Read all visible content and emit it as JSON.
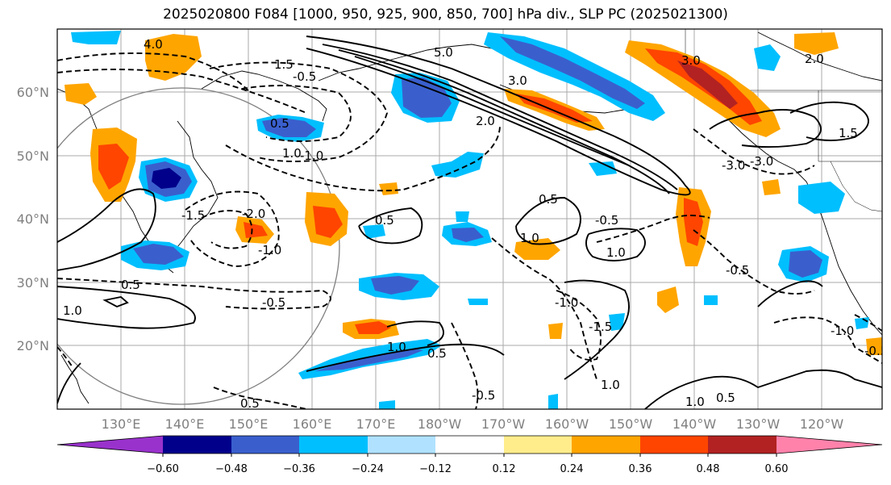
{
  "title": "2025020800 F084 [1000, 950, 925, 900, 850, 700] hPa div., SLP PC (2025021300)",
  "lat_labels": [
    "60°N",
    "50°N",
    "40°N",
    "30°N",
    "20°N"
  ],
  "lon_labels": [
    "130°E",
    "140°E",
    "150°E",
    "160°E",
    "170°E",
    "180°W",
    "170°W",
    "160°W",
    "150°W",
    "140°W",
    "130°W",
    "120°W"
  ],
  "colorbar": {
    "ticks": [
      "−0.60",
      "−0.48",
      "−0.36",
      "−0.24",
      "−0.12",
      "0.12",
      "0.24",
      "0.36",
      "0.48",
      "0.60"
    ],
    "colors": [
      "#9932cc",
      "#00008b",
      "#3a5fcd",
      "#00bfff",
      "#b0e2ff",
      "#ffffff",
      "#ffec8b",
      "#ffa500",
      "#ff4500",
      "#b22222",
      "#ff82ab"
    ]
  },
  "fill_colors": {
    "neg_light": "#b0e2ff",
    "neg_mid": "#00bfff",
    "neg_strong": "#3a5fcd",
    "neg_max": "#00008b",
    "pos_light": "#ffec8b",
    "pos_mid": "#ffa500",
    "pos_strong": "#ff4500",
    "pos_max": "#b22222"
  },
  "contour_labels": [
    "4.0",
    "5.0",
    "3.0",
    "2.0",
    "1.5",
    "1.0",
    "0.5",
    "-0.5",
    "-1.0",
    "-1.5",
    "-2.0",
    "-3.0",
    "3.0",
    "1.0",
    "0.5",
    "-0.5",
    "-1.0",
    "1.5",
    "1.0",
    "0.5",
    "-0.5",
    "1.0",
    "0.5",
    "1.0",
    "-1.0",
    "-1.5",
    "-0.5",
    "1.0",
    "-0.5",
    "0.5",
    "-1.0",
    "-3.0",
    "2.0",
    "-0.5",
    "0.5",
    "1.0",
    "0.5"
  ]
}
